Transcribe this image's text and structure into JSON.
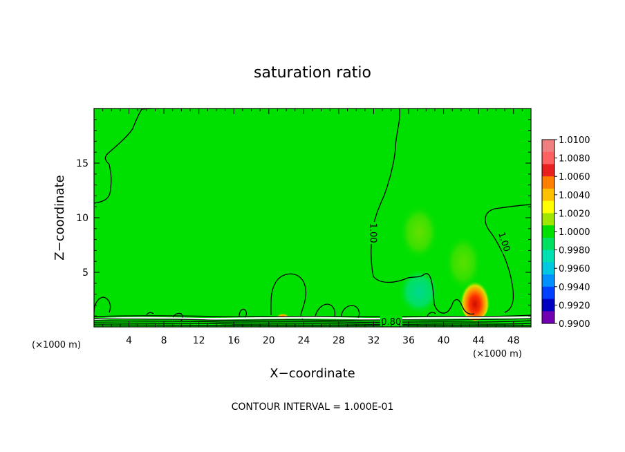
{
  "chart_data": {
    "type": "heatmap",
    "title": "saturation ratio",
    "xlabel": "X−coordinate",
    "ylabel": "Z−coordinate",
    "x_unit": "(×1000 m)",
    "y_unit": "(×1000 m)",
    "xlim": [
      0,
      50
    ],
    "ylim": [
      0,
      20
    ],
    "x_ticks": [
      4,
      8,
      12,
      16,
      20,
      24,
      28,
      32,
      36,
      40,
      44,
      48
    ],
    "y_ticks": [
      5,
      10,
      15
    ],
    "contour_labels": [
      {
        "text": "1.00",
        "x": 32,
        "y": 8.6,
        "rotation": 90
      },
      {
        "text": "1.00",
        "x": 47,
        "y": 7.8,
        "rotation": 72
      },
      {
        "text": "0.80",
        "x": 34,
        "y": 0.5,
        "rotation": 0
      }
    ],
    "contour_interval_text": "CONTOUR INTERVAL = 1.000E-01",
    "colorbar": {
      "levels": [
        "1.0100",
        "1.0080",
        "1.0060",
        "1.0040",
        "1.0020",
        "1.0000",
        "0.9980",
        "0.9960",
        "0.9940",
        "0.9920",
        "0.9900"
      ],
      "colors": [
        "#f08080",
        "#ff6060",
        "#e82020",
        "#ff8000",
        "#ffc000",
        "#ffff00",
        "#a0e600",
        "#00e000",
        "#00e060",
        "#00e0b0",
        "#00c8e0",
        "#0090ff",
        "#0040ff",
        "#0000c0",
        "#7000b0"
      ]
    },
    "field_color": "#00e000",
    "features": [
      {
        "x": 44,
        "y": 2.5,
        "level": "1.0080",
        "color": "#ff3000"
      },
      {
        "x": 37,
        "y": 2.5,
        "level": "0.9960",
        "color": "#00e0a0"
      },
      {
        "x": 39,
        "y": 8.5,
        "level": "1.0020",
        "color": "#60e000"
      },
      {
        "x": 22,
        "y": 0.8,
        "level": "1.0060",
        "color": "#ff8000"
      }
    ]
  }
}
